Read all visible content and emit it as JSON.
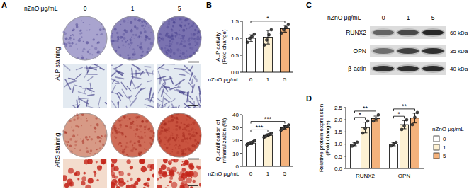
{
  "panel_labels": [
    "A",
    "B",
    "C",
    "D"
  ],
  "panel_a": {
    "header_label": "nZnO μg/mL",
    "doses": [
      "0",
      "1",
      "5"
    ],
    "rows": [
      "ALP staining",
      "ARS staining"
    ]
  },
  "panel_c": {
    "header_label": "nZnO μg/mL",
    "doses": [
      "0",
      "1",
      "5"
    ],
    "proteins": [
      "RUNX2",
      "OPN",
      "β-actin"
    ],
    "sizes": [
      "60 kDa",
      "35 kDa",
      "40 kDa"
    ]
  },
  "chart_data": [
    {
      "type": "bar",
      "ylabel_lines": [
        "ALP activity",
        "(Fold change)"
      ],
      "xlabel": "nZnO μg/mL",
      "categories": [
        "0",
        "1",
        "5"
      ],
      "values": [
        1.0,
        1.03,
        1.28
      ],
      "errors": [
        0.1,
        0.2,
        0.1
      ],
      "points": [
        [
          0.88,
          1.0,
          1.05,
          1.12
        ],
        [
          0.8,
          0.95,
          1.1,
          1.25
        ],
        [
          1.15,
          1.25,
          1.32,
          1.4
        ]
      ],
      "colors": [
        "#ffffff",
        "#fdf1d3",
        "#f4b27c"
      ],
      "grid": false,
      "ylim": [
        0,
        1.5
      ],
      "yticks": [
        {
          "value": 0,
          "label": "0.0"
        },
        0.5,
        {
          "value": 1,
          "label": "1.0"
        },
        1.5
      ],
      "annotations": [
        {
          "between": [
            "0",
            "5"
          ],
          "text": "*"
        }
      ]
    },
    {
      "type": "bar",
      "ylabel_lines": [
        "Quantification of",
        "mineralization (%)"
      ],
      "xlabel": "nZnO μg/mL",
      "categories": [
        "0",
        "1",
        "5"
      ],
      "values": [
        18,
        24,
        30
      ],
      "errors": [
        1.2,
        1.1,
        1.5
      ],
      "points": [
        [
          16.5,
          17.5,
          18,
          18.5,
          19,
          20
        ],
        [
          22.5,
          23,
          24,
          24.5,
          25,
          25.5
        ],
        [
          28,
          29,
          30,
          30.5,
          31,
          32
        ]
      ],
      "colors": [
        "#ffffff",
        "#fdf1d3",
        "#f4b27c"
      ],
      "grid": false,
      "ylim": [
        0,
        40
      ],
      "yticks": [
        0,
        10,
        20,
        30,
        40
      ],
      "annotations": [
        {
          "between": [
            "0",
            "1"
          ],
          "text": "***"
        },
        {
          "between": [
            "0",
            "5"
          ],
          "text": "***"
        }
      ]
    },
    {
      "type": "bar",
      "ylabel_lines": [
        "Relative protein expression",
        "(Fold change)"
      ],
      "categories": [
        "RUNX2",
        "OPN"
      ],
      "legend_title": "nZnO μg/mL",
      "legend": "right",
      "grid": false,
      "series": [
        {
          "name": "0",
          "color": "#ffffff",
          "values": [
            1.0,
            1.0
          ],
          "errors": [
            0.07,
            0.07
          ],
          "points": [
            [
              0.92,
              1.0,
              1.08
            ],
            [
              0.93,
              1.0,
              1.07
            ]
          ]
        },
        {
          "name": "1",
          "color": "#fdf1d3",
          "values": [
            1.68,
            1.8
          ],
          "errors": [
            0.22,
            0.17
          ],
          "points": [
            [
              1.45,
              1.65,
              1.95
            ],
            [
              1.6,
              1.75,
              2.0
            ]
          ]
        },
        {
          "name": "5",
          "color": "#f4b27c",
          "values": [
            2.05,
            2.07
          ],
          "errors": [
            0.1,
            0.2
          ],
          "points": [
            [
              1.95,
              2.05,
              2.2
            ],
            [
              1.8,
              2.1,
              2.3
            ]
          ]
        }
      ],
      "ylim": [
        0,
        2.5
      ],
      "yticks": [
        {
          "value": 0,
          "label": "0.0"
        },
        0.5,
        {
          "value": 1,
          "label": "1.0"
        },
        1.5,
        {
          "value": 2,
          "label": "2.0"
        },
        2.5
      ],
      "annotations": [
        {
          "category": "RUNX2",
          "between": [
            "0",
            "1"
          ],
          "text": "*"
        },
        {
          "category": "RUNX2",
          "between": [
            "0",
            "5"
          ],
          "text": "**"
        },
        {
          "category": "OPN",
          "between": [
            "0",
            "1"
          ],
          "text": "*"
        },
        {
          "category": "OPN",
          "between": [
            "0",
            "5"
          ],
          "text": "**"
        }
      ]
    }
  ]
}
